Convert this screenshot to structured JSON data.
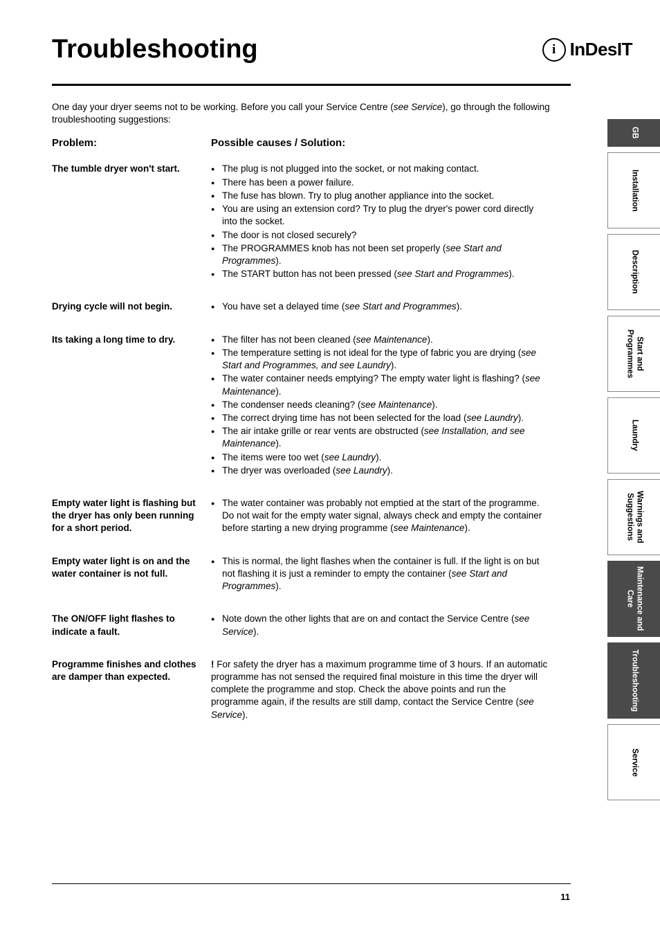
{
  "title": "Troubleshooting",
  "brand": "InDesIT",
  "intro_pre": "One day your dryer seems not to be working. Before you call your Service Centre (",
  "intro_ref": "see Service",
  "intro_post": "), go through the following troubleshooting suggestions:",
  "col_left": "Problem:",
  "col_right": "Possible causes / Solution:",
  "rows": [
    {
      "problem": "The tumble dryer won't start.",
      "items": [
        {
          "t": "The plug is not plugged into the socket, or not making contact."
        },
        {
          "t": "There has been a power failure."
        },
        {
          "t": "The fuse has blown. Try to plug another appliance into the socket."
        },
        {
          "t": "You are using an extension cord?  Try to plug the dryer's power cord directly into the socket."
        },
        {
          "t": "The door is not closed securely?"
        },
        {
          "pre": "The PROGRAMMES knob has not been set properly (",
          "ref": "see Start and Programmes",
          "post": ")."
        },
        {
          "pre": "The START button has not been pressed (",
          "ref": "see Start and  Programmes",
          "post": ")."
        }
      ]
    },
    {
      "problem": "Drying cycle will not begin.",
      "items": [
        {
          "pre": "You have set a delayed time (",
          "ref": "see Start and Programmes",
          "post": ")."
        }
      ]
    },
    {
      "problem": "Its taking a long time to dry.",
      "items": [
        {
          "pre": "The filter has not been cleaned (",
          "ref": "see Maintenance",
          "post": ")."
        },
        {
          "pre": "The temperature setting is not ideal for the type of fabric you are drying (",
          "ref": "see Start and Programmes, and see Laundry",
          "post": ")."
        },
        {
          "pre": "The water container needs emptying? The empty water light is flashing? (",
          "ref": "see Maintenance",
          "post": ")."
        },
        {
          "pre": "The condenser needs cleaning? (",
          "ref": "see Maintenance",
          "post": ")."
        },
        {
          "pre": "The correct drying time has not been selected for the load (",
          "ref": "see Laundry",
          "post": ")."
        },
        {
          "pre": "The air intake grille or rear vents are obstructed (",
          "ref": "see Installation, and see Maintenance",
          "post": ")."
        },
        {
          "pre": "The items were too wet (",
          "ref": "see Laundry",
          "post": ")."
        },
        {
          "pre": "The dryer was overloaded (",
          "ref": "see Laundry",
          "post": ")."
        }
      ]
    },
    {
      "problem": "Empty water light is flashing but the dryer has only been running for a short period.",
      "items": [
        {
          "pre": "The water container was probably not emptied at the start of the programme. Do not wait for the empty water signal, always check and empty the container before starting a new drying programme (",
          "ref": "see Maintenance",
          "post": ")."
        }
      ]
    },
    {
      "problem": "Empty water light is on and the water container is not full.",
      "items": [
        {
          "pre": "This is normal, the light flashes when the container is full. If the light is on but not flashing it is just a reminder to empty the container (",
          "ref": "see Start and Programmes",
          "post": ")."
        }
      ]
    },
    {
      "problem": "The ON/OFF light flashes to indicate a fault.",
      "items": [
        {
          "pre": "Note down the other lights that are on and contact the Service Centre (",
          "ref": "see Service",
          "post": ")."
        }
      ]
    },
    {
      "problem": "Programme finishes and clothes are damper than expected.",
      "para_pre": "! ",
      "para_mid": "For safety the dryer has a maximum programme time of 3 hours. If an automatic programme has not sensed the required final moisture in this time the dryer will complete the programme and stop. Check the above points and run the programme again, if the results are still damp, contact the Service Centre (",
      "para_ref": "see Service",
      "para_post": ")."
    }
  ],
  "tabs": [
    {
      "label": "GB",
      "short": true,
      "dark": true
    },
    {
      "label": "Installation"
    },
    {
      "label": "Description"
    },
    {
      "label": "Start and\nProgrammes"
    },
    {
      "label": "Laundry"
    },
    {
      "label": "Warnings and\nSuggestions"
    },
    {
      "label": "Maintenance and\nCare",
      "dark": true
    },
    {
      "label": "Troubleshooting",
      "dark": true
    },
    {
      "label": "Service"
    }
  ],
  "page_number": "11"
}
